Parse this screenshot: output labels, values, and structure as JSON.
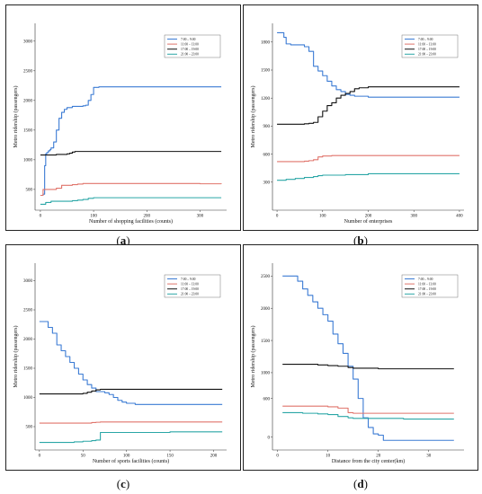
{
  "captions": [
    "a",
    "b",
    "c",
    "d"
  ],
  "colors": {
    "s1": "#3b7bd4",
    "s2": "#e0746b",
    "s3": "#111111",
    "s4": "#2aa6a6"
  },
  "legend_labels": [
    "7:00 – 9:00",
    "11:00 – 13:00",
    "17:00 – 19:00",
    "21:00 – 23:00"
  ],
  "chart_data": [
    {
      "type": "line",
      "xlabel": "Number of shopping facilities (counts)",
      "ylabel": "Metro ridership (passengers)",
      "xlim": [
        -10,
        350
      ],
      "ylim": [
        150,
        3300
      ],
      "xticks": [
        0,
        100,
        200,
        300
      ],
      "yticks": [
        500,
        1000,
        1500,
        2000,
        2500,
        3000
      ],
      "legend": "top-right",
      "series": [
        {
          "name": "7:00 – 9:00",
          "x": [
            0,
            5,
            8,
            10,
            12,
            15,
            18,
            20,
            25,
            30,
            35,
            40,
            45,
            50,
            60,
            70,
            80,
            85,
            90,
            95,
            100,
            110,
            150,
            200,
            250,
            300,
            340
          ],
          "y": [
            400,
            420,
            900,
            1100,
            1120,
            1150,
            1170,
            1200,
            1300,
            1500,
            1700,
            1800,
            1850,
            1880,
            1900,
            1900,
            1910,
            1920,
            2000,
            2100,
            2220,
            2230,
            2230,
            2230,
            2230,
            2230,
            2230
          ]
        },
        {
          "name": "11:00 – 13:00",
          "x": [
            0,
            5,
            10,
            20,
            30,
            40,
            50,
            60,
            70,
            80,
            100,
            150,
            200,
            250,
            300,
            340
          ],
          "y": [
            400,
            500,
            500,
            500,
            520,
            570,
            570,
            580,
            590,
            600,
            600,
            600,
            600,
            600,
            595,
            590
          ]
        },
        {
          "name": "17:00 – 19:00",
          "x": [
            0,
            10,
            20,
            30,
            40,
            50,
            55,
            60,
            65,
            70,
            100,
            150,
            200,
            250,
            300,
            340
          ],
          "y": [
            1080,
            1080,
            1080,
            1090,
            1090,
            1100,
            1110,
            1130,
            1140,
            1140,
            1140,
            1140,
            1140,
            1140,
            1140,
            1140
          ]
        },
        {
          "name": "21:00 – 23:00",
          "x": [
            0,
            5,
            10,
            20,
            30,
            40,
            50,
            60,
            70,
            80,
            90,
            100,
            150,
            200,
            250,
            300,
            340
          ],
          "y": [
            250,
            250,
            280,
            300,
            300,
            300,
            300,
            310,
            320,
            330,
            350,
            360,
            360,
            360,
            360,
            360,
            360
          ]
        }
      ]
    },
    {
      "type": "line",
      "xlabel": "Number of enterprises",
      "ylabel": "Metro ridership (passengers)",
      "xlim": [
        -10,
        410
      ],
      "ylim": [
        0,
        2000
      ],
      "xticks": [
        0,
        100,
        200,
        300,
        400
      ],
      "yticks": [
        300,
        600,
        900,
        1200,
        1500,
        1800
      ],
      "legend": "top-right",
      "series": [
        {
          "name": "7:00 – 9:00",
          "x": [
            0,
            10,
            15,
            20,
            30,
            40,
            60,
            70,
            80,
            90,
            100,
            110,
            120,
            130,
            140,
            150,
            160,
            170,
            200,
            250,
            300,
            350,
            400
          ],
          "y": [
            1900,
            1900,
            1850,
            1780,
            1770,
            1770,
            1750,
            1700,
            1540,
            1490,
            1440,
            1380,
            1330,
            1290,
            1270,
            1240,
            1230,
            1220,
            1210,
            1210,
            1210,
            1210,
            1210
          ]
        },
        {
          "name": "11:00 – 13:00",
          "x": [
            0,
            20,
            40,
            60,
            70,
            80,
            90,
            100,
            120,
            150,
            200,
            250,
            300,
            350,
            400
          ],
          "y": [
            520,
            520,
            520,
            525,
            530,
            540,
            570,
            580,
            585,
            585,
            585,
            585,
            585,
            585,
            585
          ]
        },
        {
          "name": "17:00 – 19:00",
          "x": [
            0,
            20,
            40,
            60,
            70,
            80,
            90,
            100,
            110,
            120,
            130,
            140,
            150,
            160,
            170,
            180,
            200,
            250,
            300,
            350,
            400
          ],
          "y": [
            920,
            920,
            920,
            925,
            930,
            940,
            1000,
            1060,
            1120,
            1150,
            1200,
            1230,
            1250,
            1270,
            1300,
            1310,
            1320,
            1320,
            1320,
            1320,
            1320
          ]
        },
        {
          "name": "21:00 – 23:00",
          "x": [
            0,
            10,
            20,
            40,
            60,
            80,
            90,
            100,
            150,
            200,
            250,
            300,
            350,
            400
          ],
          "y": [
            320,
            320,
            330,
            340,
            350,
            360,
            370,
            375,
            380,
            390,
            390,
            390,
            390,
            390
          ]
        }
      ]
    },
    {
      "type": "line",
      "xlabel": "Number of sports facilities (counts)",
      "ylabel": "Metro ridership (passengers)",
      "xlim": [
        -5,
        215
      ],
      "ylim": [
        100,
        3300
      ],
      "xticks": [
        0,
        50,
        100,
        150,
        200
      ],
      "yticks": [
        500,
        1000,
        1500,
        2000,
        2500,
        3000
      ],
      "legend": "top-right",
      "series": [
        {
          "name": "7:00 – 9:00",
          "x": [
            0,
            5,
            10,
            15,
            20,
            25,
            30,
            35,
            40,
            45,
            50,
            55,
            60,
            65,
            70,
            75,
            80,
            85,
            90,
            95,
            100,
            110,
            150,
            200,
            210
          ],
          "y": [
            2300,
            2300,
            2200,
            2100,
            1900,
            1800,
            1700,
            1600,
            1500,
            1400,
            1300,
            1220,
            1160,
            1100,
            1100,
            1080,
            1050,
            1000,
            950,
            920,
            900,
            880,
            880,
            880,
            880
          ]
        },
        {
          "name": "11:00 – 13:00",
          "x": [
            0,
            20,
            40,
            60,
            65,
            70,
            100,
            150,
            200,
            210
          ],
          "y": [
            560,
            560,
            560,
            570,
            575,
            580,
            580,
            580,
            580,
            580
          ]
        },
        {
          "name": "17:00 – 19:00",
          "x": [
            0,
            20,
            40,
            50,
            55,
            60,
            65,
            70,
            100,
            150,
            200,
            210
          ],
          "y": [
            1060,
            1060,
            1060,
            1070,
            1090,
            1110,
            1130,
            1140,
            1140,
            1140,
            1140,
            1140
          ]
        },
        {
          "name": "21:00 – 23:00",
          "x": [
            0,
            20,
            40,
            50,
            60,
            65,
            70,
            100,
            150,
            200,
            210
          ],
          "y": [
            230,
            230,
            240,
            250,
            260,
            270,
            400,
            400,
            410,
            410,
            410
          ]
        }
      ]
    },
    {
      "type": "line",
      "xlabel": "Distance from the city center(km)",
      "ylabel": "Metro ridership (passengers)",
      "xlim": [
        -1,
        37
      ],
      "ylim": [
        -200,
        2700
      ],
      "xticks": [
        0,
        10,
        20,
        30
      ],
      "yticks": [
        0,
        600,
        1000,
        1500,
        2000,
        2500
      ],
      "legend": "top-right",
      "series": [
        {
          "name": "7:00 – 9:00",
          "x": [
            1,
            2,
            3,
            4,
            5,
            6,
            7,
            8,
            9,
            10,
            11,
            12,
            13,
            14,
            15,
            16,
            17,
            18,
            19,
            20,
            21,
            22,
            25,
            30,
            35
          ],
          "y": [
            2500,
            2500,
            2500,
            2420,
            2300,
            2200,
            2100,
            2000,
            1900,
            1800,
            1600,
            1450,
            1300,
            1100,
            900,
            600,
            300,
            150,
            50,
            30,
            -50,
            -50,
            -50,
            -50,
            -50
          ]
        },
        {
          "name": "11:00 – 13:00",
          "x": [
            1,
            5,
            8,
            10,
            12,
            14,
            15,
            20,
            25,
            30,
            35
          ],
          "y": [
            480,
            480,
            480,
            470,
            450,
            380,
            370,
            370,
            370,
            370,
            370
          ]
        },
        {
          "name": "17:00 – 19:00",
          "x": [
            1,
            5,
            8,
            10,
            12,
            14,
            15,
            20,
            25,
            30,
            35
          ],
          "y": [
            1130,
            1130,
            1120,
            1110,
            1100,
            1080,
            1070,
            1060,
            1060,
            1060,
            1060
          ]
        },
        {
          "name": "21:00 – 23:00",
          "x": [
            1,
            5,
            8,
            10,
            12,
            14,
            15,
            20,
            25,
            30,
            35
          ],
          "y": [
            380,
            370,
            360,
            350,
            320,
            300,
            290,
            290,
            280,
            280,
            280
          ]
        }
      ]
    }
  ]
}
